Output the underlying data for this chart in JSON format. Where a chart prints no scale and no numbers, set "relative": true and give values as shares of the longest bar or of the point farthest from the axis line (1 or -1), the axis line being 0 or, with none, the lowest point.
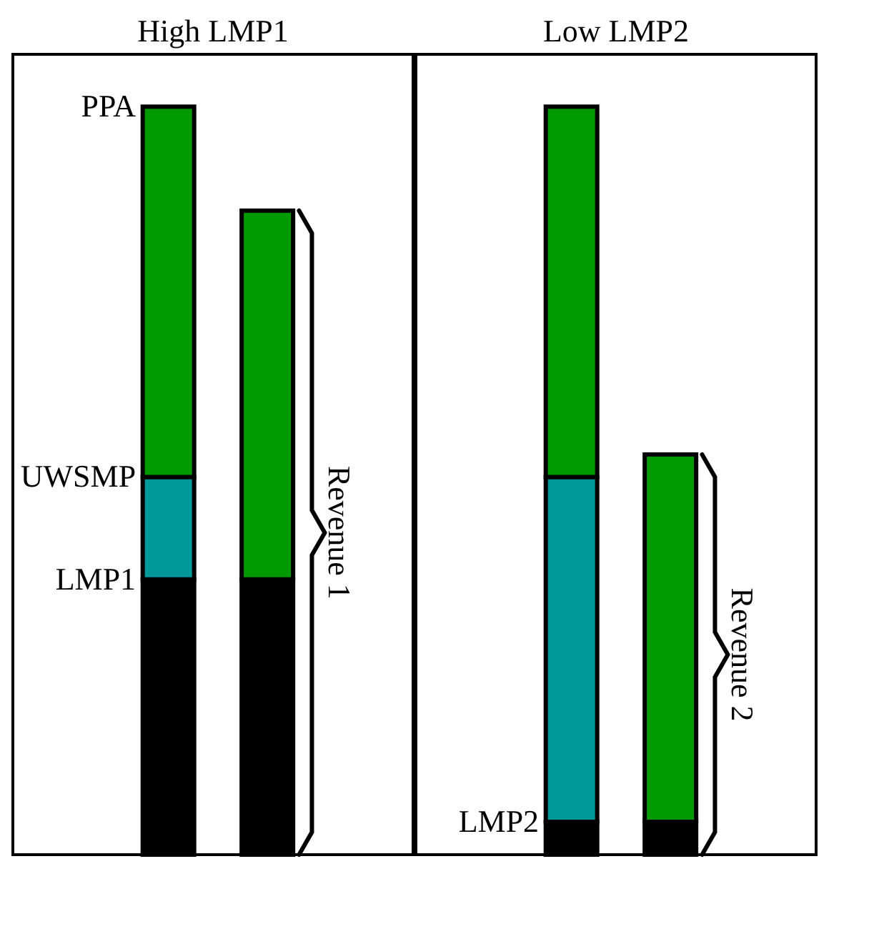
{
  "chart_data": [
    {
      "type": "bar",
      "title": "High LMP1",
      "relative": true,
      "stacked": true,
      "categories": [
        null,
        null
      ],
      "series": [
        {
          "color": "#000000",
          "values": [
            0.368,
            0.368
          ]
        },
        {
          "color": "#009999",
          "values": [
            0.137,
            0
          ]
        },
        {
          "color": "#009900",
          "values": [
            0.495,
            0.493
          ]
        }
      ],
      "annotations": [
        "PPA",
        "UWSMP",
        "LMP1",
        "Revenue 1"
      ]
    },
    {
      "type": "bar",
      "title": "Low LMP2",
      "relative": true,
      "stacked": true,
      "categories": [
        null,
        null
      ],
      "series": [
        {
          "color": "#000000",
          "values": [
            0.044,
            0.044
          ]
        },
        {
          "color": "#009999",
          "values": [
            0.461,
            0
          ]
        },
        {
          "color": "#009900",
          "values": [
            0.495,
            0.491
          ]
        }
      ],
      "annotations": [
        "LMP2",
        "Revenue 2"
      ]
    }
  ]
}
